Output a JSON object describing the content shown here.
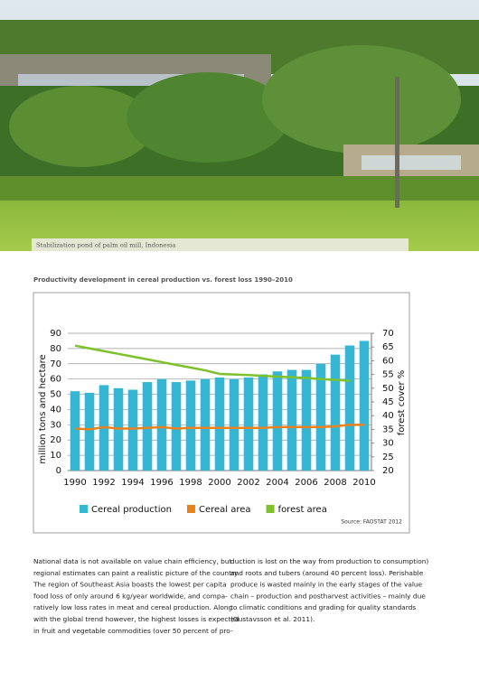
{
  "photo_caption": "Stabilization pond of palm oil mill, Indonesia",
  "chart_data": {
    "type": "bar",
    "title": "Productivity development in cereal production vs. forest loss 1990–2010",
    "ylabel": "million tons and hectare",
    "y2label": "forest cover %",
    "source": "Source: FAOSTAT 2012",
    "categories": [
      "1990",
      null,
      "1992",
      null,
      "1994",
      null,
      "1996",
      null,
      "1998",
      null,
      "2000",
      null,
      "2002",
      null,
      "2004",
      null,
      "2006",
      null,
      "2008",
      null,
      "2010"
    ],
    "ylim": [
      0,
      90
    ],
    "yticks": [
      0,
      10,
      20,
      30,
      40,
      50,
      60,
      70,
      80,
      90
    ],
    "y2lim": [
      20,
      70
    ],
    "y2ticks": [
      20,
      25,
      30,
      35,
      40,
      45,
      50,
      55,
      60,
      65,
      70
    ],
    "grid": true,
    "series": [
      {
        "name": "Cereal production",
        "type": "bar",
        "color": "#35b6d4",
        "values": [
          52,
          51,
          56,
          54,
          53,
          58,
          60,
          58,
          59,
          60,
          61,
          60,
          61,
          63,
          65,
          66,
          66,
          70,
          76,
          82,
          85
        ]
      },
      {
        "name": "Cereal area",
        "type": "line",
        "color": "#e8821e",
        "values": [
          27.5,
          27,
          28.5,
          27.5,
          27.5,
          28,
          28.5,
          27.5,
          28,
          28,
          28,
          28,
          28,
          28,
          28.5,
          28.5,
          28.5,
          28.5,
          29,
          30,
          30
        ]
      },
      {
        "name": "forest area",
        "type": "line",
        "axis": "y2",
        "color": "#7dc12c",
        "values": [
          65.5,
          64.5,
          63.5,
          62.5,
          61.5,
          60.5,
          59.5,
          58.5,
          57.5,
          56.5,
          55.2,
          55,
          54.8,
          54.5,
          54.2,
          54,
          53.7,
          53.3,
          53,
          52.7,
          null
        ]
      }
    ]
  },
  "text": {
    "left": [
      "National data is not available on value chain efficiency, but",
      "regional estimates can paint a realistic picture of the country.",
      "The region of Southeast Asia boasts the lowest per capita",
      "food loss of only around 6 kg/year worldwide, and compa-",
      "ratively low loss rates in meat and cereal production. Along",
      "with the global trend however, the highest losses is expected",
      "in fruit and vegetable commodities (over 50 percent of pro-"
    ],
    "right": [
      "duction is lost on the way from production to consumption)",
      "and roots and tubers (around 40 percent loss). Perishable",
      "produce is wasted mainly in the early stages of the value",
      "chain – production and postharvest activities – mainly due",
      "to climatic conditions and grading for quality standards",
      "(Gustavsson et al. 2011)."
    ]
  }
}
